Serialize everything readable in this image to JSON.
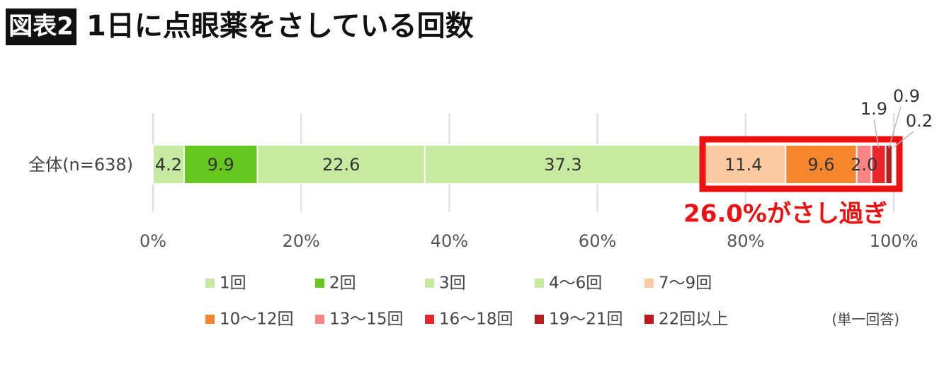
{
  "chart_data": {
    "type": "stacked_bar_horizontal",
    "badge": "図表2",
    "title": "1日に点眼薬をさしている回数",
    "categories": [
      "全体(n=638)"
    ],
    "series": [
      {
        "name": "1回",
        "color": "#c6eba0",
        "values": [
          4.2
        ]
      },
      {
        "name": "2回",
        "color": "#66c71e",
        "values": [
          9.9
        ]
      },
      {
        "name": "3回",
        "color": "#c6eba0",
        "values": [
          22.6
        ]
      },
      {
        "name": "4〜6回",
        "color": "#c6eba0",
        "values": [
          37.3
        ]
      },
      {
        "name": "7〜9回",
        "color": "#fcc9a0",
        "values": [
          11.4
        ]
      },
      {
        "name": "10〜12回",
        "color": "#f5862d",
        "values": [
          9.6
        ]
      },
      {
        "name": "13〜15回",
        "color": "#f78585",
        "values": [
          2.0
        ],
        "value_labels": [
          "2.0"
        ]
      },
      {
        "name": "16〜18回",
        "color": "#e8262c",
        "values": [
          1.9
        ]
      },
      {
        "name": "19〜21回",
        "color": "#b51e1e",
        "values": [
          0.9
        ]
      },
      {
        "name": "22回以上",
        "color": "#c0161e",
        "values": [
          0.2
        ]
      }
    ],
    "xlim": [
      0,
      100
    ],
    "xticks": [
      {
        "value": 0,
        "label": "0%"
      },
      {
        "value": 20,
        "label": "20%"
      },
      {
        "value": 40,
        "label": "40%"
      },
      {
        "value": 60,
        "label": "60%"
      },
      {
        "value": 80,
        "label": "80%"
      },
      {
        "value": 100,
        "label": "100%"
      }
    ],
    "grid": true,
    "callout": "26.0%がさし過ぎ",
    "note": "(単一回答)"
  }
}
